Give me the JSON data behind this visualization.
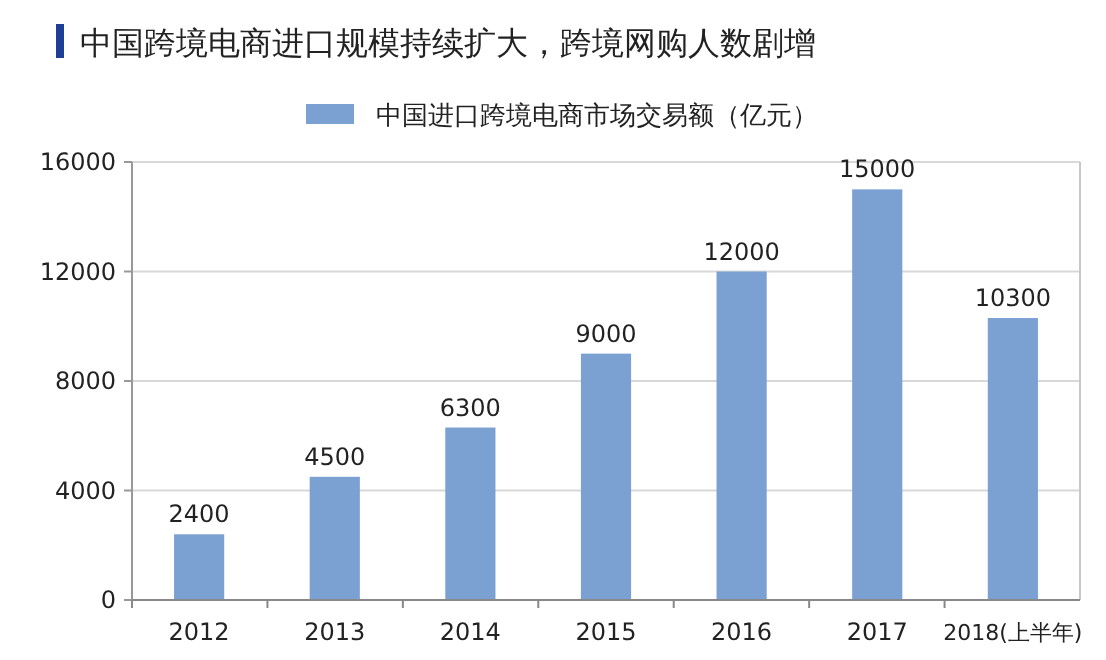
{
  "chart_data": {
    "type": "bar",
    "title": "中国跨境电商进口规模持续扩大，跨境网购人数剧增",
    "categories": [
      "2012",
      "2013",
      "2014",
      "2015",
      "2016",
      "2017",
      "2018(上半年)"
    ],
    "series": [
      {
        "name": "中国进口跨境电商市场交易额（亿元）",
        "color": "#7ba1d2",
        "values": [
          2400,
          4500,
          6300,
          9000,
          12000,
          15000,
          10300
        ]
      }
    ],
    "ylim": [
      0,
      16000
    ],
    "yticks": [
      0,
      4000,
      8000,
      12000,
      16000
    ],
    "grid": "y",
    "legend": "top",
    "data_labels": true
  }
}
